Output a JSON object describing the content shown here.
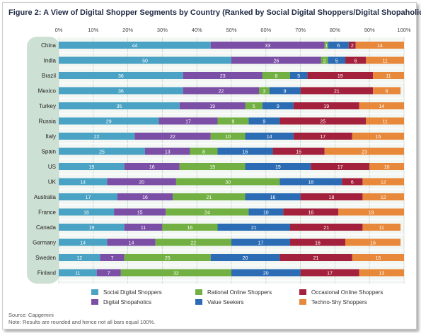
{
  "title": "Figure 2: A View of Digital Shopper Segments by Country (Ranked by Social Digital Shoppers/Digital Shopaholics)",
  "source": "Source: Capgemini",
  "note": "Note: Results are rounded and hence not all bars equal 100%.",
  "chart_data": {
    "type": "bar",
    "orientation": "horizontal",
    "stacked": true,
    "x_ticks": [
      "0%",
      "10%",
      "20%",
      "30%",
      "40%",
      "50%",
      "60%",
      "70%",
      "80%",
      "90%",
      "100%"
    ],
    "xlim": [
      0,
      100
    ],
    "grid": true,
    "legend_position": "bottom",
    "categories": [
      "China",
      "India",
      "Brazil",
      "Mexico",
      "Turkey",
      "Russia",
      "Italy",
      "Spain",
      "US",
      "UK",
      "Australia",
      "France",
      "Canada",
      "Germany",
      "Sweden",
      "Finland"
    ],
    "series": [
      {
        "name": "Social Digital Shoppers",
        "color": "#4aa3c4",
        "values": [
          44,
          50,
          36,
          36,
          35,
          29,
          22,
          25,
          19,
          14,
          17,
          16,
          19,
          14,
          12,
          11
        ]
      },
      {
        "name": "Digital Shopaholics",
        "color": "#7b4fa6",
        "values": [
          33,
          26,
          23,
          22,
          19,
          17,
          22,
          13,
          16,
          20,
          16,
          15,
          11,
          14,
          7,
          7
        ]
      },
      {
        "name": "Rational Online Shoppers",
        "color": "#72b043",
        "values": [
          1,
          2,
          8,
          3,
          5,
          9,
          10,
          8,
          19,
          30,
          21,
          24,
          16,
          22,
          25,
          32
        ]
      },
      {
        "name": "Value Seekers",
        "color": "#2b6cb5",
        "values": [
          6,
          5,
          5,
          9,
          9,
          9,
          14,
          16,
          19,
          18,
          16,
          10,
          21,
          17,
          20,
          20
        ]
      },
      {
        "name": "Occasional Online Shoppers",
        "color": "#a3213d",
        "values": [
          2,
          6,
          19,
          21,
          19,
          25,
          17,
          15,
          17,
          6,
          18,
          16,
          21,
          16,
          21,
          17
        ]
      },
      {
        "name": "Techno-Shy Shoppers",
        "color": "#e8883a",
        "values": [
          14,
          11,
          11,
          8,
          14,
          11,
          15,
          23,
          10,
          12,
          12,
          19,
          11,
          16,
          15,
          13
        ]
      }
    ]
  }
}
